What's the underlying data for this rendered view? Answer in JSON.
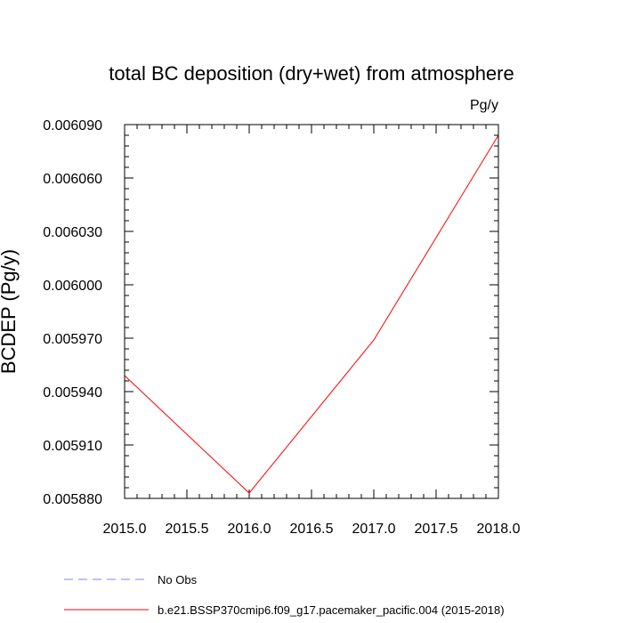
{
  "chart_data": {
    "type": "line",
    "title": "total BC deposition (dry+wet) from atmosphere",
    "units": "Pg/y",
    "ylabel": "BCDEP  (Pg/y)",
    "xlabel": "",
    "xlim": [
      2015.0,
      2018.0
    ],
    "ylim": [
      0.00588,
      0.00609
    ],
    "x_ticks": [
      "2015.0",
      "2015.5",
      "2016.0",
      "2016.5",
      "2017.0",
      "2017.5",
      "2018.0"
    ],
    "y_ticks": [
      "0.005880",
      "0.005910",
      "0.005940",
      "0.005970",
      "0.006000",
      "0.006030",
      "0.006060",
      "0.006090"
    ],
    "grid": false,
    "legend_position": "bottom",
    "series": [
      {
        "name": "No Obs",
        "color": "#8080ff",
        "dashed": true,
        "x": [],
        "y": []
      },
      {
        "name": "b.e21.BSSP370cmip6.f09_g17.pacemaker_pacific.004 (2015-2018)",
        "color": "#ff0000",
        "dashed": false,
        "x": [
          2015,
          2016,
          2017,
          2018
        ],
        "y": [
          0.005949,
          0.005883,
          0.005969,
          0.006084
        ]
      }
    ]
  }
}
